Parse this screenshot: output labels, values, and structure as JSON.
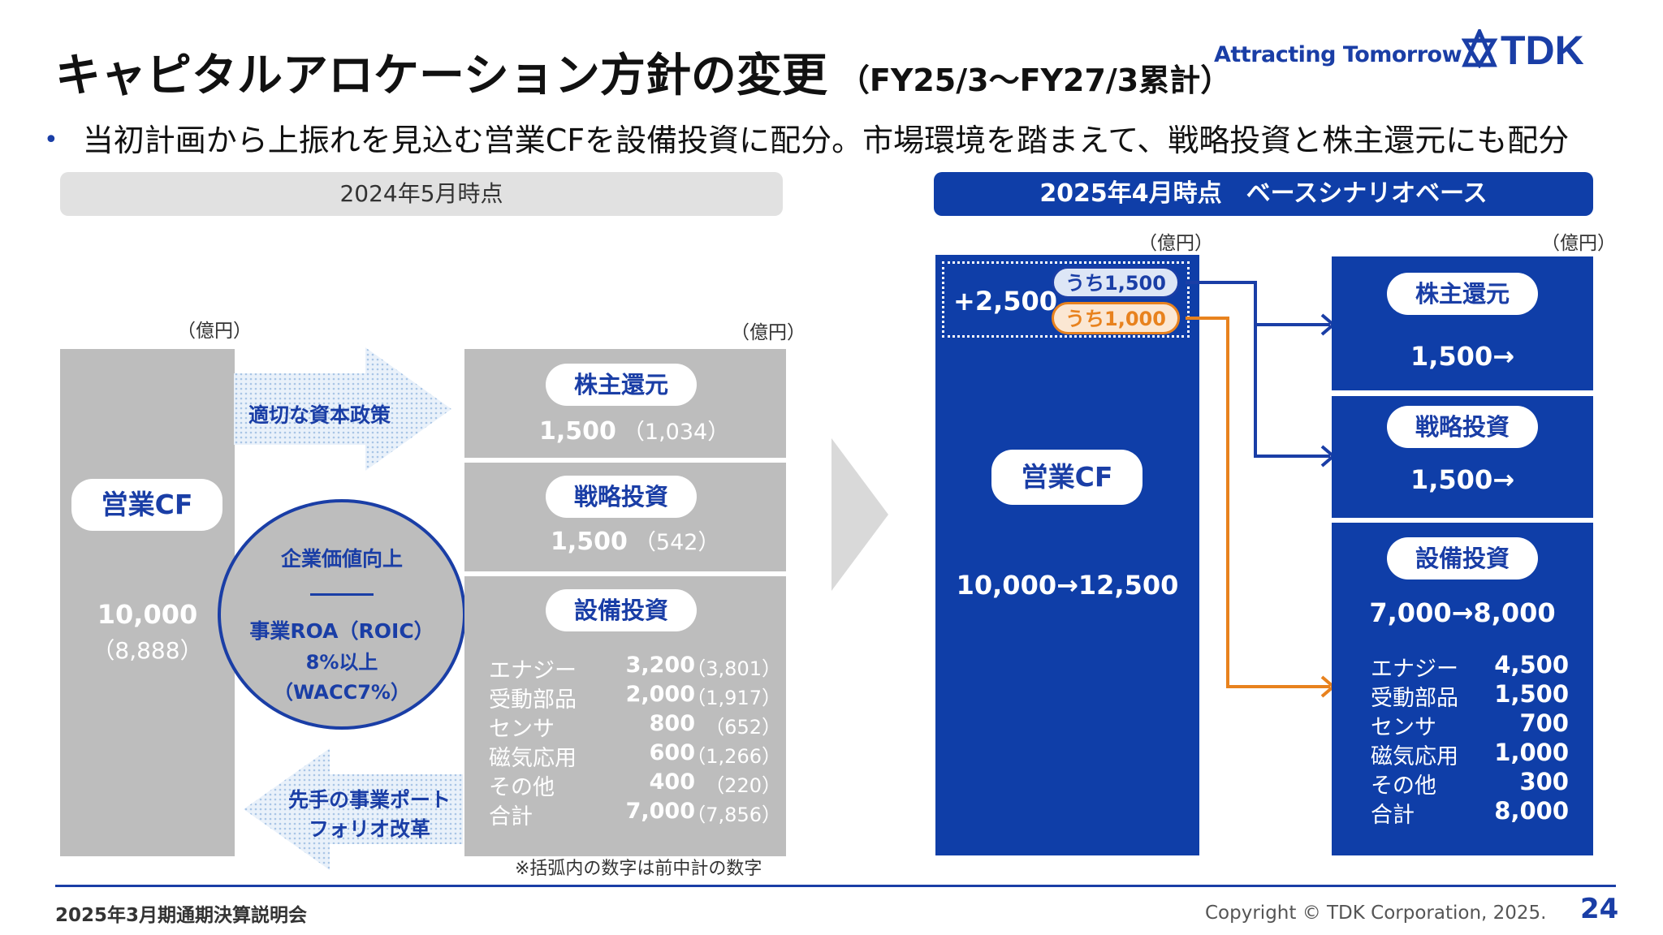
{
  "header": {
    "title": "キャピタルアロケーション方針の変更",
    "subtitle": "（FY25/3〜FY27/3累計）",
    "tagline": "Attracting Tomorrow",
    "logo_text": "TDK"
  },
  "bullet": "当初計画から上振れを見込む営業CFを設備投資に配分。市場環境を踏まえて、戦略投資と株主還元にも配分",
  "left": {
    "header": "2024年5月時点",
    "unit": "（億円）",
    "cf": {
      "label": "営業CF",
      "value": "10,000",
      "old": "（8,888）"
    },
    "arrow_top": "適切な資本政策",
    "arrow_bottom_line1": "先手の事業ポート",
    "arrow_bottom_line2": "フォリオ改革",
    "circle": {
      "line1": "企業価値向上",
      "line2": "事業ROA（ROIC）",
      "line3": "8%以上",
      "line4": "（WACC7%）"
    },
    "shareholder": {
      "label": "株主還元",
      "value": "1,500",
      "old": "（1,034）"
    },
    "strategic": {
      "label": "戦略投資",
      "value": "1,500",
      "old": "（542）"
    },
    "capex": {
      "label": "設備投資",
      "rows": [
        {
          "name": "エナジー",
          "value": "3,200",
          "old": "（3,801）"
        },
        {
          "name": "受動部品",
          "value": "2,000",
          "old": "（1,917）"
        },
        {
          "name": "センサ",
          "value": "800",
          "old": "（652）"
        },
        {
          "name": "磁気応用",
          "value": "600",
          "old": "（1,266）"
        },
        {
          "name": "その他",
          "value": "400",
          "old": "（220）"
        },
        {
          "name": "合計",
          "value": "7,000",
          "old": "（7,856）"
        }
      ]
    },
    "note": "※括弧内の数字は前中計の数字"
  },
  "right": {
    "header": "2025年4月時点　ベースシナリオベース",
    "unit": "（億円）",
    "increase": "+2,500",
    "tag_blue": "うち1,500",
    "tag_orange": "うち1,000",
    "cf": {
      "label": "営業CF",
      "value": "10,000→12,500"
    },
    "shareholder": {
      "label": "株主還元",
      "value": "1,500→"
    },
    "strategic": {
      "label": "戦略投資",
      "value": "1,500→"
    },
    "capex": {
      "label": "設備投資",
      "value": "7,000→8,000",
      "rows": [
        {
          "name": "エナジー",
          "value": "4,500"
        },
        {
          "name": "受動部品",
          "value": "1,500"
        },
        {
          "name": "センサ",
          "value": "700"
        },
        {
          "name": "磁気応用",
          "value": "1,000"
        },
        {
          "name": "その他",
          "value": "300"
        },
        {
          "name": "合計",
          "value": "8,000"
        }
      ]
    }
  },
  "footer": {
    "event": "2025年3月期通期決算説明会",
    "copyright": "Copyright © TDK Corporation, 2025.",
    "page": "24"
  },
  "colors": {
    "brand_blue": "#0f3ea8",
    "orange": "#e8821e",
    "gray_box": "#bdbdbd"
  }
}
